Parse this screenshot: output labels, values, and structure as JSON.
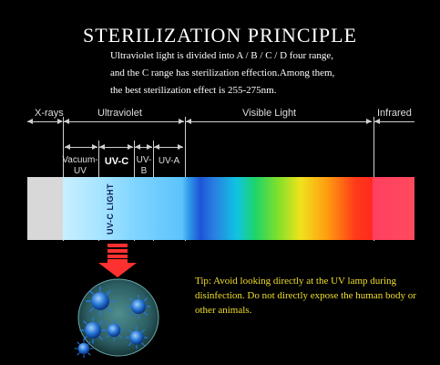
{
  "title": "STERILIZATION PRINCIPLE",
  "description": [
    "Ultraviolet light is divided into A / B / C / D four range,",
    "and the C range has sterilization effection.Among them,",
    "the best sterilization effect is 255-275nm."
  ],
  "regions": {
    "xrays": "X-rays",
    "ultraviolet": "Ultraviolet",
    "visible": "Visible Light",
    "infrared": "Infrared"
  },
  "bands": {
    "vacuum_uv": [
      "Vacuum-",
      "UV"
    ],
    "uvc": "UV-C",
    "uvb": [
      "UV-",
      "B"
    ],
    "uva": "UV-A"
  },
  "uvc_light_label": "UV-C LIGHT",
  "tip": "Tip: Avoid looking directly at the UV lamp during disinfection. Do not directly expose the human body or other animals.",
  "colors": {
    "background": "#000000",
    "tip_text": "#f2df2c",
    "arrow": "#ff3030",
    "virus": "#1f6fd0"
  }
}
